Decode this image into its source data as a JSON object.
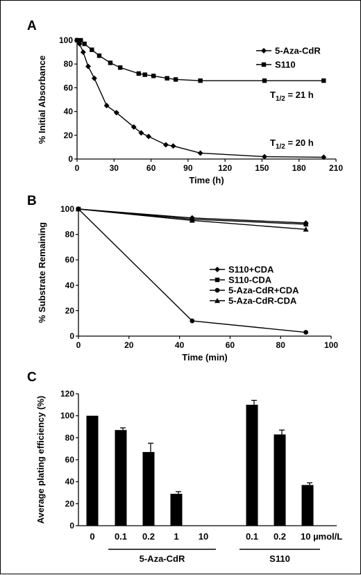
{
  "chart_data": [
    {
      "panel": "A",
      "type": "line",
      "xlabel": "Time (h)",
      "ylabel": "% Initial Absorbance",
      "xlim": [
        0,
        210
      ],
      "ylim": [
        0,
        100
      ],
      "xticks": [
        0,
        30,
        60,
        90,
        120,
        150,
        180,
        210
      ],
      "yticks": [
        0,
        20,
        40,
        60,
        80,
        100
      ],
      "legend_position": "top-right",
      "series": [
        {
          "name": "5-Aza-CdR",
          "marker": "diamond",
          "x": [
            0,
            2,
            5,
            9,
            14,
            24,
            32,
            46,
            52,
            58,
            72,
            78,
            100,
            152,
            200
          ],
          "y": [
            100,
            97,
            90,
            78,
            68,
            45,
            39,
            27,
            22,
            19,
            12,
            11,
            5,
            2,
            1.5
          ]
        },
        {
          "name": "S110",
          "marker": "square",
          "x": [
            0,
            3,
            6,
            12,
            18,
            27,
            35,
            50,
            55,
            62,
            73,
            80,
            100,
            152,
            200
          ],
          "y": [
            100,
            100,
            97,
            92,
            87,
            81,
            77,
            72,
            71,
            70,
            68,
            67,
            66,
            66,
            66
          ]
        }
      ],
      "annotations": [
        {
          "base": "T",
          "sub": "1/2",
          "rest": " = 21 h"
        },
        {
          "base": "T",
          "sub": "1/2",
          "rest": " = 20 h"
        }
      ]
    },
    {
      "panel": "B",
      "type": "line",
      "xlabel": "Time (min)",
      "ylabel": "% Substrate Remaining",
      "xlim": [
        0,
        100
      ],
      "ylim": [
        0,
        100
      ],
      "xticks": [
        0,
        20,
        40,
        60,
        80,
        100
      ],
      "yticks": [
        0,
        20,
        40,
        60,
        80,
        100
      ],
      "legend_position": "right",
      "series": [
        {
          "name": "S110+CDA",
          "marker": "diamond",
          "x": [
            0,
            45,
            90
          ],
          "y": [
            100,
            93,
            89
          ]
        },
        {
          "name": "S110-CDA",
          "marker": "square",
          "x": [
            0,
            45,
            90
          ],
          "y": [
            100,
            92,
            88
          ]
        },
        {
          "name": "5-Aza-CdR+CDA",
          "marker": "circle",
          "x": [
            0,
            45,
            90
          ],
          "y": [
            100,
            12,
            3
          ]
        },
        {
          "name": "5-Aza-CdR-CDA",
          "marker": "triangle",
          "x": [
            0,
            45,
            90
          ],
          "y": [
            100,
            91,
            84
          ]
        }
      ]
    },
    {
      "panel": "C",
      "type": "bar",
      "ylabel": "Average plating efficiency (%)",
      "ylim": [
        0,
        120
      ],
      "yticks": [
        0,
        20,
        40,
        60,
        80,
        100,
        120
      ],
      "categories": [
        "0",
        "0.1",
        "0.2",
        "1",
        "10",
        "0.1",
        "0.2",
        "10 µmol/L"
      ],
      "values": [
        100,
        87,
        67,
        29,
        0,
        110,
        83,
        37
      ],
      "errors": [
        0,
        2,
        8,
        2,
        0,
        4,
        4,
        2
      ],
      "groups": [
        {
          "label": "5-Aza-CdR",
          "from": 1,
          "to": 4
        },
        {
          "label": "S110",
          "from": 5,
          "to": 7
        }
      ]
    }
  ]
}
